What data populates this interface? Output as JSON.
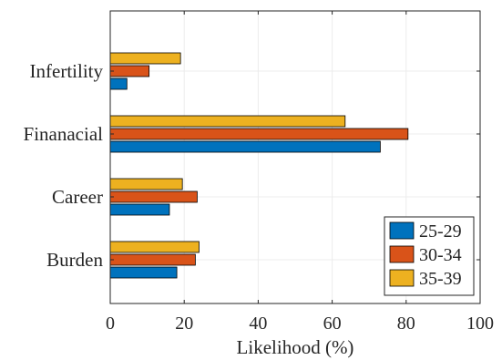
{
  "chart_data": {
    "type": "bar",
    "orientation": "horizontal",
    "categories": [
      "Burden",
      "Career",
      "Finanacial",
      "Infertility"
    ],
    "series": [
      {
        "name": "25-29",
        "color": "#0072BD",
        "values": [
          18,
          16,
          73,
          4.5
        ]
      },
      {
        "name": "30-34",
        "color": "#D95319",
        "values": [
          23,
          23.5,
          80.5,
          10.5
        ]
      },
      {
        "name": "35-39",
        "color": "#EDB120",
        "values": [
          24,
          19.5,
          63.5,
          19
        ]
      }
    ],
    "xlabel": "Likelihood (%)",
    "ylabel": "",
    "xlim": [
      0,
      100
    ],
    "xticks": [
      "0",
      "20",
      "40",
      "60",
      "80",
      "100"
    ],
    "grid": true,
    "legend_position": "bottom-right"
  }
}
